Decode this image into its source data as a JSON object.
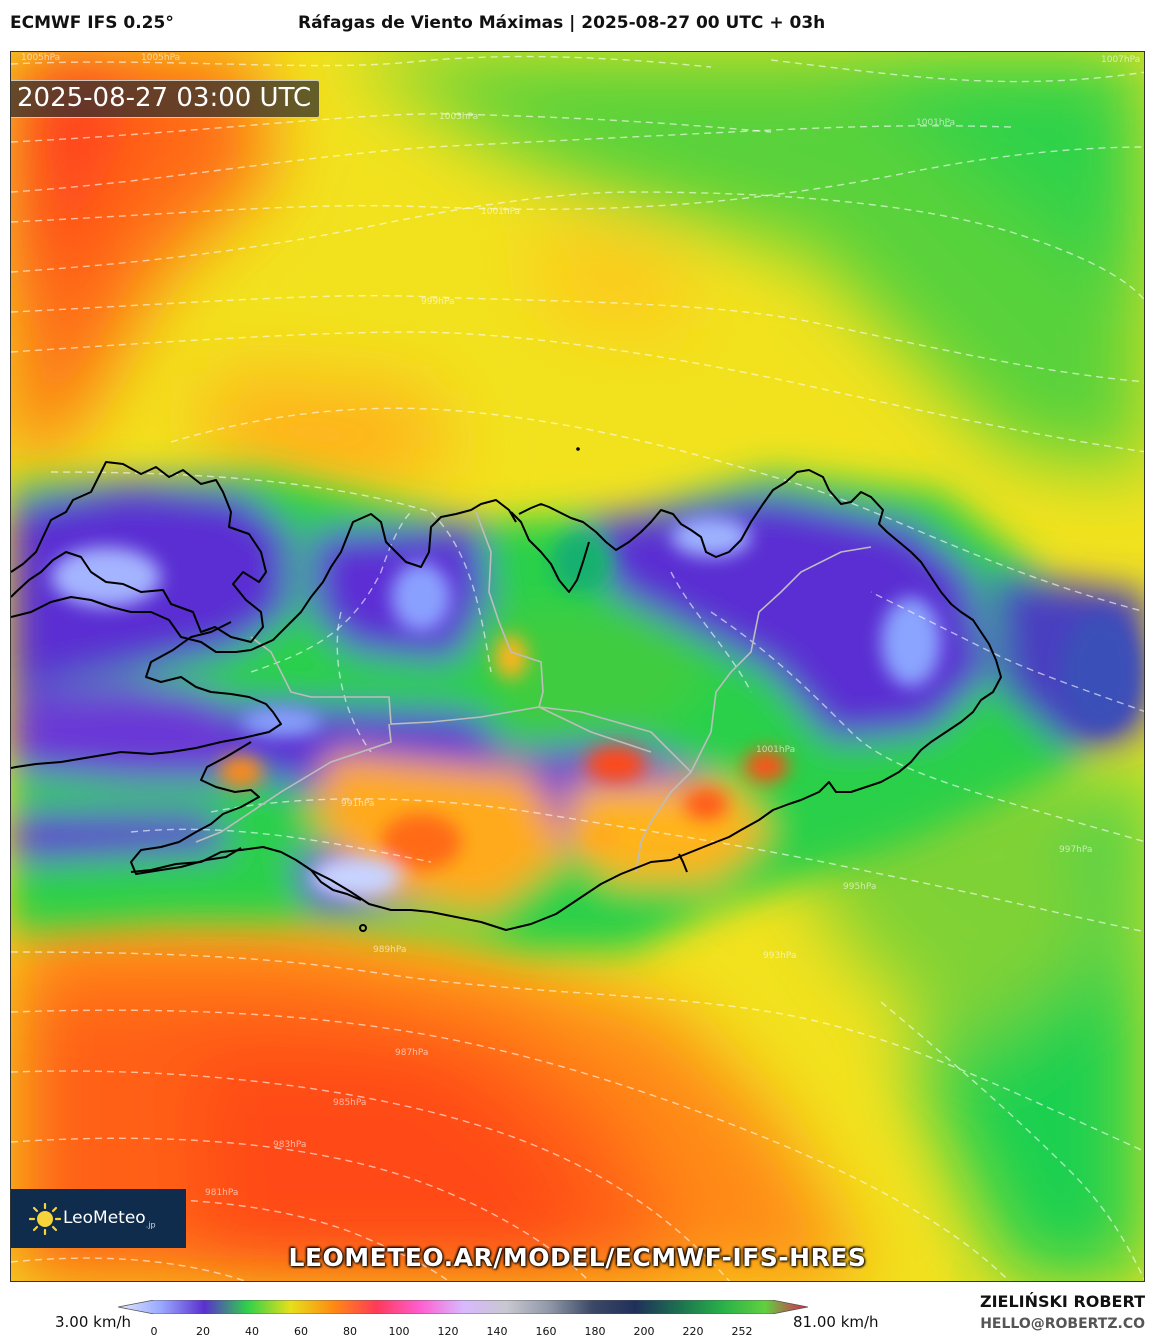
{
  "header": {
    "model": "ECMWF IFS 0.25°",
    "title": "Ráfagas de Viento Máximas | 2025-08-27 00 UTC + 03h"
  },
  "map": {
    "valid_time": "2025-08-27 03:00 UTC",
    "region": "Iceland",
    "field": "Maximum wind gusts (km/h)",
    "isobar_labels": [
      "1005hPa",
      "1005hPa",
      "1003hPa",
      "1007hPa",
      "1001hPa",
      "1001hPa",
      "999hPa",
      "1001hPa",
      "997hPa",
      "995hPa",
      "993hPa",
      "989hPa",
      "991hPa",
      "987hPa",
      "985hPa",
      "983hPa",
      "981hPa"
    ],
    "colors": {
      "calm_purple": "#5b2fd0",
      "light_blue": "#8fa8ff",
      "green": "#22cc3a",
      "yellow": "#f4e21c",
      "orange": "#ff8a12",
      "red_orange": "#ff4a14",
      "coastline": "#000000",
      "borders": "#c0c0c0",
      "isobars": "#ffffff"
    }
  },
  "branding": {
    "logo_name": "LeoMeteo",
    "logo_suffix": ".jp",
    "logo_icon": "sun-icon",
    "url": "LEOMETEO.AR/MODEL/ECMWF-IFS-HRES"
  },
  "colorbar": {
    "min_label": "3.00 km/h",
    "max_label": "81.00 km/h",
    "ticks": [
      "0",
      "20",
      "40",
      "60",
      "80",
      "100",
      "120",
      "140",
      "160",
      "180",
      "200",
      "220",
      "252"
    ],
    "stops": [
      "#dfe8ff",
      "#9aa8ff",
      "#5a30d0",
      "#2fd04a",
      "#e6e01a",
      "#ff8a12",
      "#ff3a5a",
      "#ff5ed0",
      "#d8b8ff",
      "#c8c8d0",
      "#9098a8",
      "#3c4866",
      "#20305a",
      "#1c7050",
      "#28b048",
      "#60d040",
      "#e02050"
    ]
  },
  "author": {
    "name": "ZIELIŃSKI ROBERT",
    "email": "HELLO@ROBERTZ.CO"
  }
}
